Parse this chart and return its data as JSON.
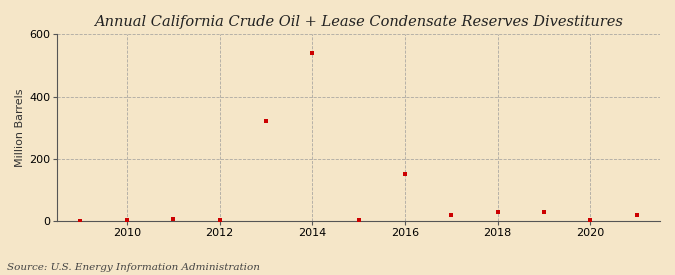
{
  "title": "Annual California Crude Oil + Lease Condensate Reserves Divestitures",
  "ylabel": "Million Barrels",
  "source": "Source: U.S. Energy Information Administration",
  "background_color": "#f5e6c8",
  "plot_background_color": "#fdf6e3",
  "marker_color": "#cc0000",
  "grid_color": "#999999",
  "years": [
    2009,
    2010,
    2011,
    2012,
    2013,
    2014,
    2015,
    2016,
    2017,
    2018,
    2019,
    2020,
    2021
  ],
  "values": [
    0.5,
    2.0,
    8.0,
    2.0,
    320.0,
    540.0,
    2.0,
    150.0,
    18.0,
    28.0,
    28.0,
    2.0,
    20.0
  ],
  "ylim": [
    0,
    600
  ],
  "yticks": [
    0,
    200,
    400,
    600
  ],
  "xlim": [
    2008.5,
    2021.5
  ],
  "xticks": [
    2010,
    2012,
    2014,
    2016,
    2018,
    2020
  ],
  "title_fontsize": 10.5,
  "label_fontsize": 8,
  "source_fontsize": 7.5
}
